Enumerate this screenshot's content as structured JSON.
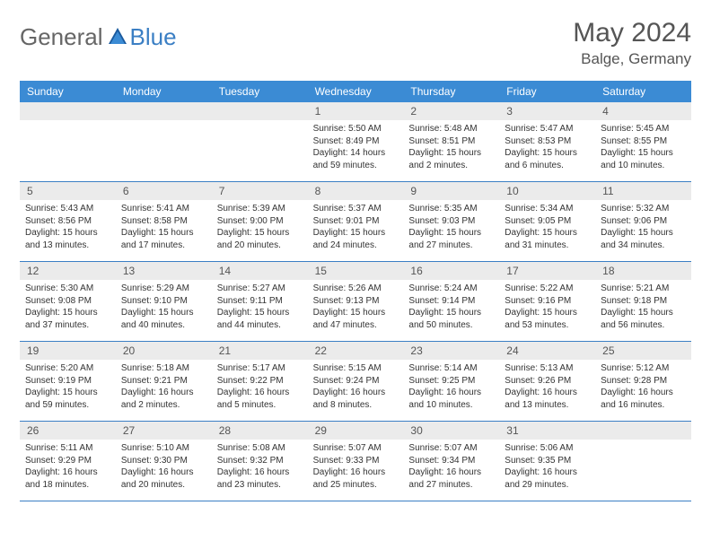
{
  "logo": {
    "part1": "General",
    "part2": "Blue"
  },
  "title": "May 2024",
  "location": "Balge, Germany",
  "colors": {
    "header_bar": "#3b8bd4",
    "accent": "#3b7fc4",
    "daynum_bg": "#ebebeb",
    "text": "#333333",
    "muted": "#555555"
  },
  "daynames": [
    "Sunday",
    "Monday",
    "Tuesday",
    "Wednesday",
    "Thursday",
    "Friday",
    "Saturday"
  ],
  "weeks": [
    [
      {
        "n": "",
        "sunrise": "",
        "sunset": "",
        "daylight": ""
      },
      {
        "n": "",
        "sunrise": "",
        "sunset": "",
        "daylight": ""
      },
      {
        "n": "",
        "sunrise": "",
        "sunset": "",
        "daylight": ""
      },
      {
        "n": "1",
        "sunrise": "Sunrise: 5:50 AM",
        "sunset": "Sunset: 8:49 PM",
        "daylight": "Daylight: 14 hours and 59 minutes."
      },
      {
        "n": "2",
        "sunrise": "Sunrise: 5:48 AM",
        "sunset": "Sunset: 8:51 PM",
        "daylight": "Daylight: 15 hours and 2 minutes."
      },
      {
        "n": "3",
        "sunrise": "Sunrise: 5:47 AM",
        "sunset": "Sunset: 8:53 PM",
        "daylight": "Daylight: 15 hours and 6 minutes."
      },
      {
        "n": "4",
        "sunrise": "Sunrise: 5:45 AM",
        "sunset": "Sunset: 8:55 PM",
        "daylight": "Daylight: 15 hours and 10 minutes."
      }
    ],
    [
      {
        "n": "5",
        "sunrise": "Sunrise: 5:43 AM",
        "sunset": "Sunset: 8:56 PM",
        "daylight": "Daylight: 15 hours and 13 minutes."
      },
      {
        "n": "6",
        "sunrise": "Sunrise: 5:41 AM",
        "sunset": "Sunset: 8:58 PM",
        "daylight": "Daylight: 15 hours and 17 minutes."
      },
      {
        "n": "7",
        "sunrise": "Sunrise: 5:39 AM",
        "sunset": "Sunset: 9:00 PM",
        "daylight": "Daylight: 15 hours and 20 minutes."
      },
      {
        "n": "8",
        "sunrise": "Sunrise: 5:37 AM",
        "sunset": "Sunset: 9:01 PM",
        "daylight": "Daylight: 15 hours and 24 minutes."
      },
      {
        "n": "9",
        "sunrise": "Sunrise: 5:35 AM",
        "sunset": "Sunset: 9:03 PM",
        "daylight": "Daylight: 15 hours and 27 minutes."
      },
      {
        "n": "10",
        "sunrise": "Sunrise: 5:34 AM",
        "sunset": "Sunset: 9:05 PM",
        "daylight": "Daylight: 15 hours and 31 minutes."
      },
      {
        "n": "11",
        "sunrise": "Sunrise: 5:32 AM",
        "sunset": "Sunset: 9:06 PM",
        "daylight": "Daylight: 15 hours and 34 minutes."
      }
    ],
    [
      {
        "n": "12",
        "sunrise": "Sunrise: 5:30 AM",
        "sunset": "Sunset: 9:08 PM",
        "daylight": "Daylight: 15 hours and 37 minutes."
      },
      {
        "n": "13",
        "sunrise": "Sunrise: 5:29 AM",
        "sunset": "Sunset: 9:10 PM",
        "daylight": "Daylight: 15 hours and 40 minutes."
      },
      {
        "n": "14",
        "sunrise": "Sunrise: 5:27 AM",
        "sunset": "Sunset: 9:11 PM",
        "daylight": "Daylight: 15 hours and 44 minutes."
      },
      {
        "n": "15",
        "sunrise": "Sunrise: 5:26 AM",
        "sunset": "Sunset: 9:13 PM",
        "daylight": "Daylight: 15 hours and 47 minutes."
      },
      {
        "n": "16",
        "sunrise": "Sunrise: 5:24 AM",
        "sunset": "Sunset: 9:14 PM",
        "daylight": "Daylight: 15 hours and 50 minutes."
      },
      {
        "n": "17",
        "sunrise": "Sunrise: 5:22 AM",
        "sunset": "Sunset: 9:16 PM",
        "daylight": "Daylight: 15 hours and 53 minutes."
      },
      {
        "n": "18",
        "sunrise": "Sunrise: 5:21 AM",
        "sunset": "Sunset: 9:18 PM",
        "daylight": "Daylight: 15 hours and 56 minutes."
      }
    ],
    [
      {
        "n": "19",
        "sunrise": "Sunrise: 5:20 AM",
        "sunset": "Sunset: 9:19 PM",
        "daylight": "Daylight: 15 hours and 59 minutes."
      },
      {
        "n": "20",
        "sunrise": "Sunrise: 5:18 AM",
        "sunset": "Sunset: 9:21 PM",
        "daylight": "Daylight: 16 hours and 2 minutes."
      },
      {
        "n": "21",
        "sunrise": "Sunrise: 5:17 AM",
        "sunset": "Sunset: 9:22 PM",
        "daylight": "Daylight: 16 hours and 5 minutes."
      },
      {
        "n": "22",
        "sunrise": "Sunrise: 5:15 AM",
        "sunset": "Sunset: 9:24 PM",
        "daylight": "Daylight: 16 hours and 8 minutes."
      },
      {
        "n": "23",
        "sunrise": "Sunrise: 5:14 AM",
        "sunset": "Sunset: 9:25 PM",
        "daylight": "Daylight: 16 hours and 10 minutes."
      },
      {
        "n": "24",
        "sunrise": "Sunrise: 5:13 AM",
        "sunset": "Sunset: 9:26 PM",
        "daylight": "Daylight: 16 hours and 13 minutes."
      },
      {
        "n": "25",
        "sunrise": "Sunrise: 5:12 AM",
        "sunset": "Sunset: 9:28 PM",
        "daylight": "Daylight: 16 hours and 16 minutes."
      }
    ],
    [
      {
        "n": "26",
        "sunrise": "Sunrise: 5:11 AM",
        "sunset": "Sunset: 9:29 PM",
        "daylight": "Daylight: 16 hours and 18 minutes."
      },
      {
        "n": "27",
        "sunrise": "Sunrise: 5:10 AM",
        "sunset": "Sunset: 9:30 PM",
        "daylight": "Daylight: 16 hours and 20 minutes."
      },
      {
        "n": "28",
        "sunrise": "Sunrise: 5:08 AM",
        "sunset": "Sunset: 9:32 PM",
        "daylight": "Daylight: 16 hours and 23 minutes."
      },
      {
        "n": "29",
        "sunrise": "Sunrise: 5:07 AM",
        "sunset": "Sunset: 9:33 PM",
        "daylight": "Daylight: 16 hours and 25 minutes."
      },
      {
        "n": "30",
        "sunrise": "Sunrise: 5:07 AM",
        "sunset": "Sunset: 9:34 PM",
        "daylight": "Daylight: 16 hours and 27 minutes."
      },
      {
        "n": "31",
        "sunrise": "Sunrise: 5:06 AM",
        "sunset": "Sunset: 9:35 PM",
        "daylight": "Daylight: 16 hours and 29 minutes."
      },
      {
        "n": "",
        "sunrise": "",
        "sunset": "",
        "daylight": ""
      }
    ]
  ]
}
